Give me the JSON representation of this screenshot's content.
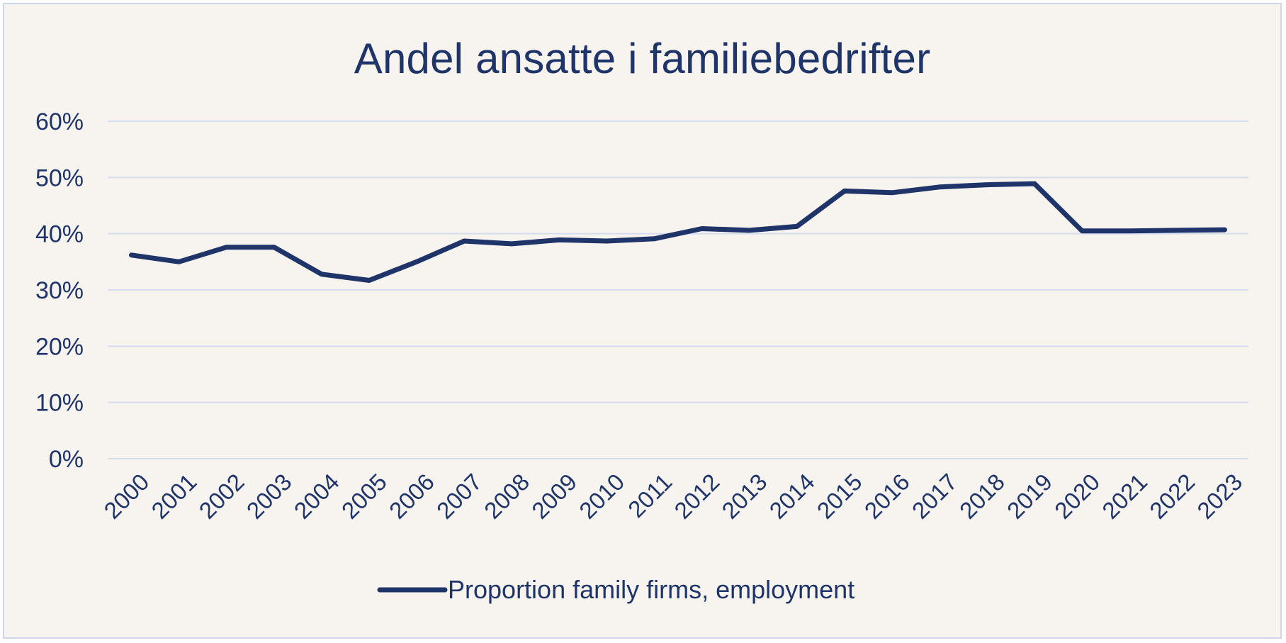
{
  "chart_data": {
    "type": "line",
    "title": "Andel ansatte i familiebedrifter",
    "xlabel": "",
    "ylabel": "",
    "categories": [
      "2000",
      "2001",
      "2002",
      "2003",
      "2004",
      "2005",
      "2006",
      "2007",
      "2008",
      "2009",
      "2010",
      "2011",
      "2012",
      "2013",
      "2014",
      "2015",
      "2016",
      "2017",
      "2018",
      "2019",
      "2020",
      "2021",
      "2022",
      "2023"
    ],
    "series": [
      {
        "name": "Proportion family firms, employment",
        "values": [
          36.2,
          35.0,
          37.6,
          37.6,
          32.8,
          31.7,
          35.0,
          38.7,
          38.2,
          38.9,
          38.7,
          39.1,
          40.9,
          40.6,
          41.3,
          47.6,
          47.3,
          48.3,
          48.7,
          48.9,
          40.5,
          40.5,
          40.6,
          40.7
        ],
        "color": "#1f3468"
      }
    ],
    "y_ticks": [
      "0%",
      "10%",
      "20%",
      "30%",
      "40%",
      "50%",
      "60%"
    ],
    "ylim": [
      0,
      60
    ],
    "grid": true,
    "legend_position": "bottom",
    "colors": {
      "background": "#f7f3ee",
      "frame_border": "#cfd6ea",
      "gridline": "#d6dcef",
      "text": "#1f3468",
      "line": "#1f3468"
    }
  }
}
